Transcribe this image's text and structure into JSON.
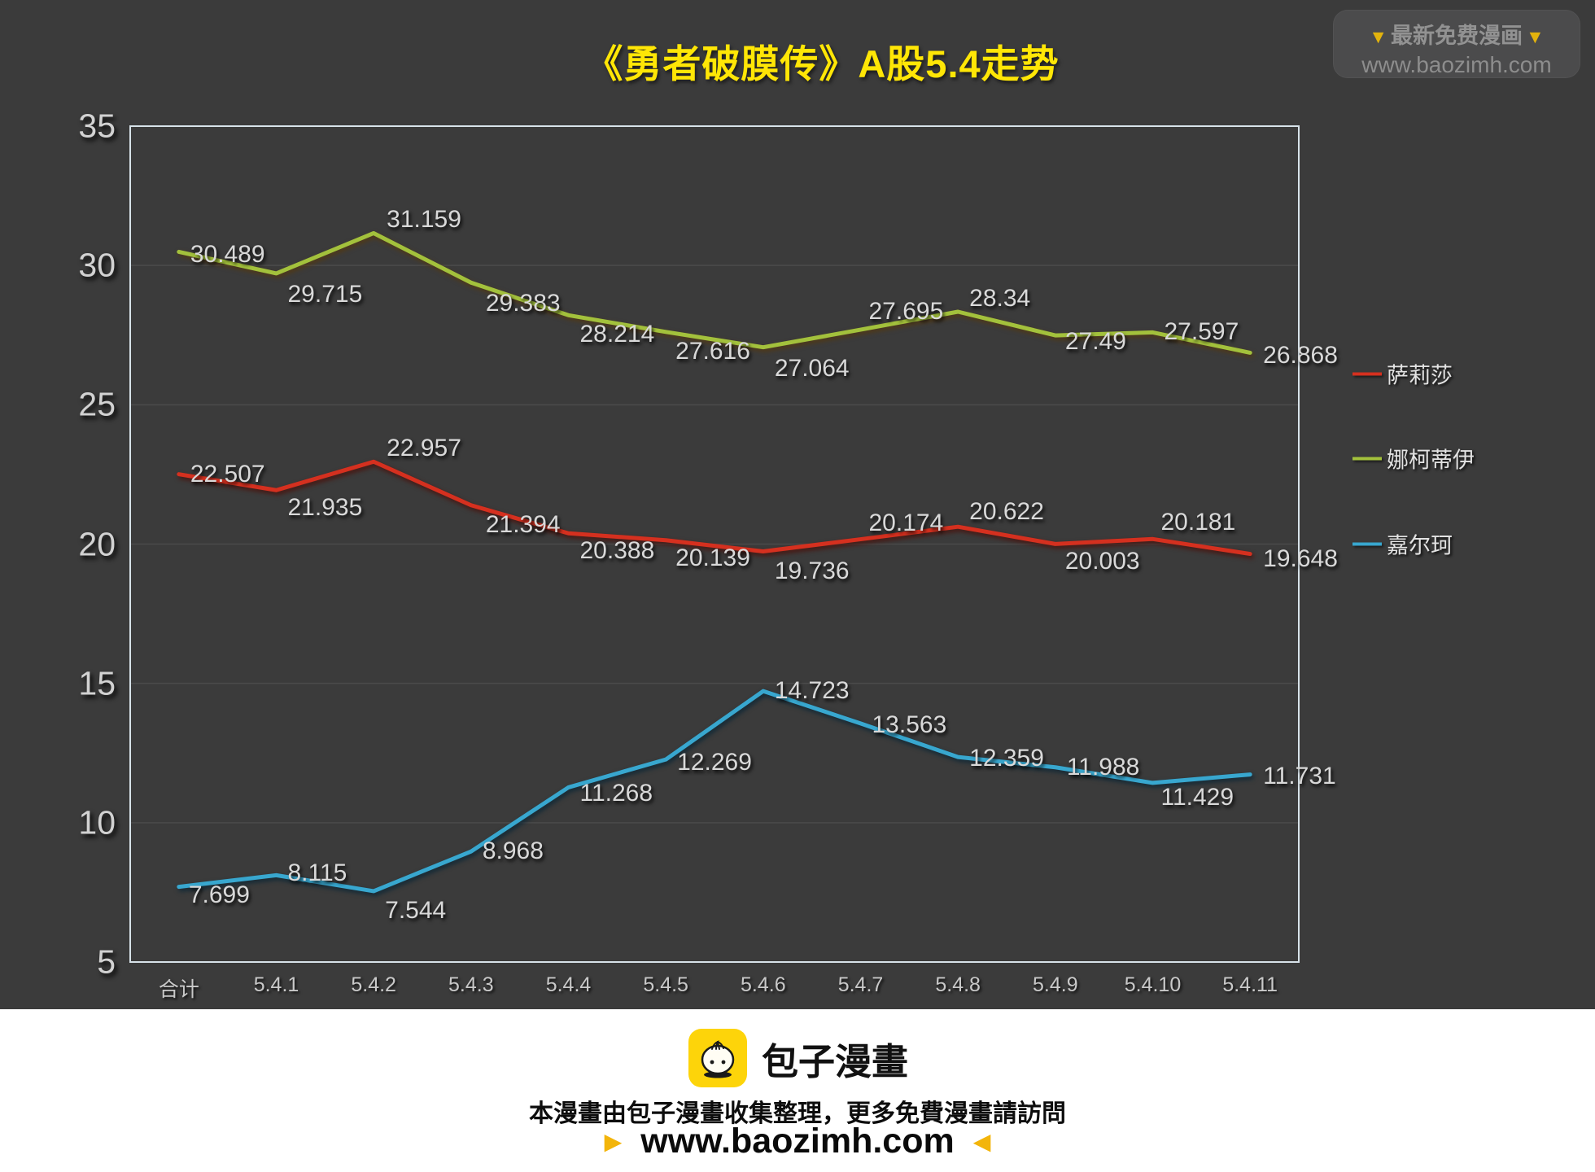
{
  "title": "《勇者破膜传》A股5.4走势",
  "watermark": {
    "label": "最新免费漫画",
    "url": "www.baozimh.com"
  },
  "icons": {
    "hand_down": "▼",
    "hand_right": "►",
    "hand_left": "◄"
  },
  "chart_data": {
    "type": "line",
    "title": "《勇者破膜传》A股5.4走势",
    "categories": [
      "合计",
      "5.4.1",
      "5.4.2",
      "5.4.3",
      "5.4.4",
      "5.4.5",
      "5.4.6",
      "5.4.7",
      "5.4.8",
      "5.4.9",
      "5.4.10",
      "5.4.11"
    ],
    "series": [
      {
        "name": "萨莉莎",
        "color": "#d5301f",
        "values": [
          22.507,
          21.935,
          22.957,
          21.394,
          20.388,
          20.139,
          19.736,
          20.174,
          20.622,
          20.003,
          20.181,
          19.648
        ],
        "label_offsets": [
          [
            14,
            0
          ],
          [
            14,
            22
          ],
          [
            16,
            -16
          ],
          [
            18,
            24
          ],
          [
            14,
            22
          ],
          [
            12,
            22
          ],
          [
            14,
            24
          ],
          [
            10,
            -20
          ],
          [
            14,
            -18
          ],
          [
            12,
            22
          ],
          [
            10,
            -20
          ],
          [
            16,
            6
          ]
        ]
      },
      {
        "name": "娜柯蒂伊",
        "color": "#a3c13c",
        "values": [
          30.489,
          29.715,
          31.159,
          29.383,
          28.214,
          27.616,
          27.064,
          27.695,
          28.34,
          27.49,
          27.597,
          26.868
        ],
        "label_offsets": [
          [
            14,
            4
          ],
          [
            14,
            26
          ],
          [
            16,
            -16
          ],
          [
            18,
            26
          ],
          [
            14,
            24
          ],
          [
            12,
            24
          ],
          [
            14,
            26
          ],
          [
            10,
            -22
          ],
          [
            14,
            -16
          ],
          [
            12,
            8
          ],
          [
            14,
            0
          ],
          [
            16,
            4
          ]
        ]
      },
      {
        "name": "嘉尔珂",
        "color": "#38a7cf",
        "values": [
          7.699,
          8.115,
          7.544,
          8.968,
          11.268,
          12.269,
          14.723,
          13.563,
          12.359,
          11.988,
          11.429,
          11.731
        ],
        "label_offsets": [
          [
            12,
            10
          ],
          [
            14,
            -2
          ],
          [
            14,
            24
          ],
          [
            14,
            0
          ],
          [
            14,
            8
          ],
          [
            14,
            4
          ],
          [
            14,
            0
          ],
          [
            14,
            2
          ],
          [
            14,
            2
          ],
          [
            14,
            0
          ],
          [
            10,
            18
          ],
          [
            16,
            2
          ]
        ]
      }
    ],
    "ylim": [
      5,
      35
    ],
    "yticks": [
      35,
      30,
      25,
      20,
      15,
      10,
      5
    ],
    "grid": true,
    "legend_position": "right"
  },
  "footer": {
    "brand": "包子漫畫",
    "line1": "本漫畫由包子漫畫收集整理，更多免費漫畫請訪問",
    "url": "www.baozimh.com"
  }
}
